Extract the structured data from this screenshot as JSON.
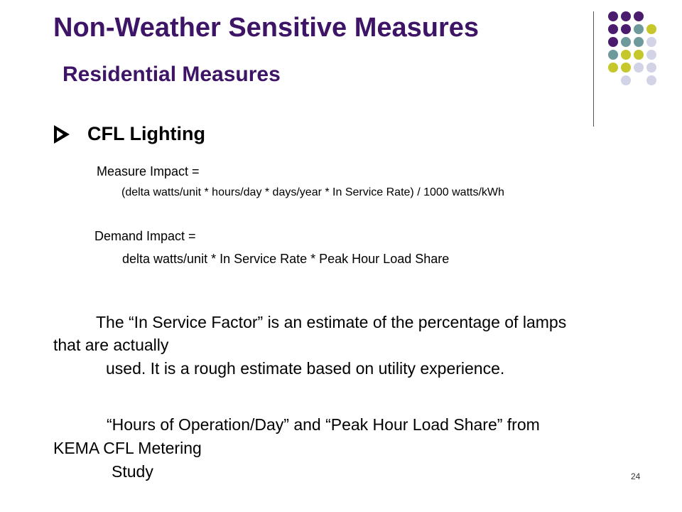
{
  "slide": {
    "title": "Non-Weather Sensitive Measures",
    "subtitle": "Residential Measures",
    "bullet_heading": "CFL Lighting",
    "measure_impact_label": "Measure Impact =",
    "measure_impact_formula": "(delta watts/unit * hours/day * days/year * In Service Rate) / 1000 watts/kWh",
    "demand_impact_label": "Demand Impact =",
    "demand_impact_formula": "delta watts/unit * In Service Rate * Peak Hour Load Share",
    "in_service_line1": "The “In Service Factor” is an estimate of the percentage of lamps",
    "in_service_line2": "that are actually",
    "in_service_line3": "used.  It is a rough estimate based on utility experience.",
    "hours_line1": "“Hours of Operation/Day” and “Peak Hour Load Share” from",
    "hours_line2": "KEMA CFL Metering",
    "hours_line3": "Study",
    "page_number": "24"
  },
  "colors": {
    "title": "#3e1466",
    "purple": "#4b1c6e",
    "teal": "#6e9a9b",
    "olive": "#c5c72a",
    "lavender": "#d3d3e8"
  },
  "icons": {
    "bullet": "arrowhead-bullet-icon",
    "decoration": "dot-grid-decoration"
  }
}
